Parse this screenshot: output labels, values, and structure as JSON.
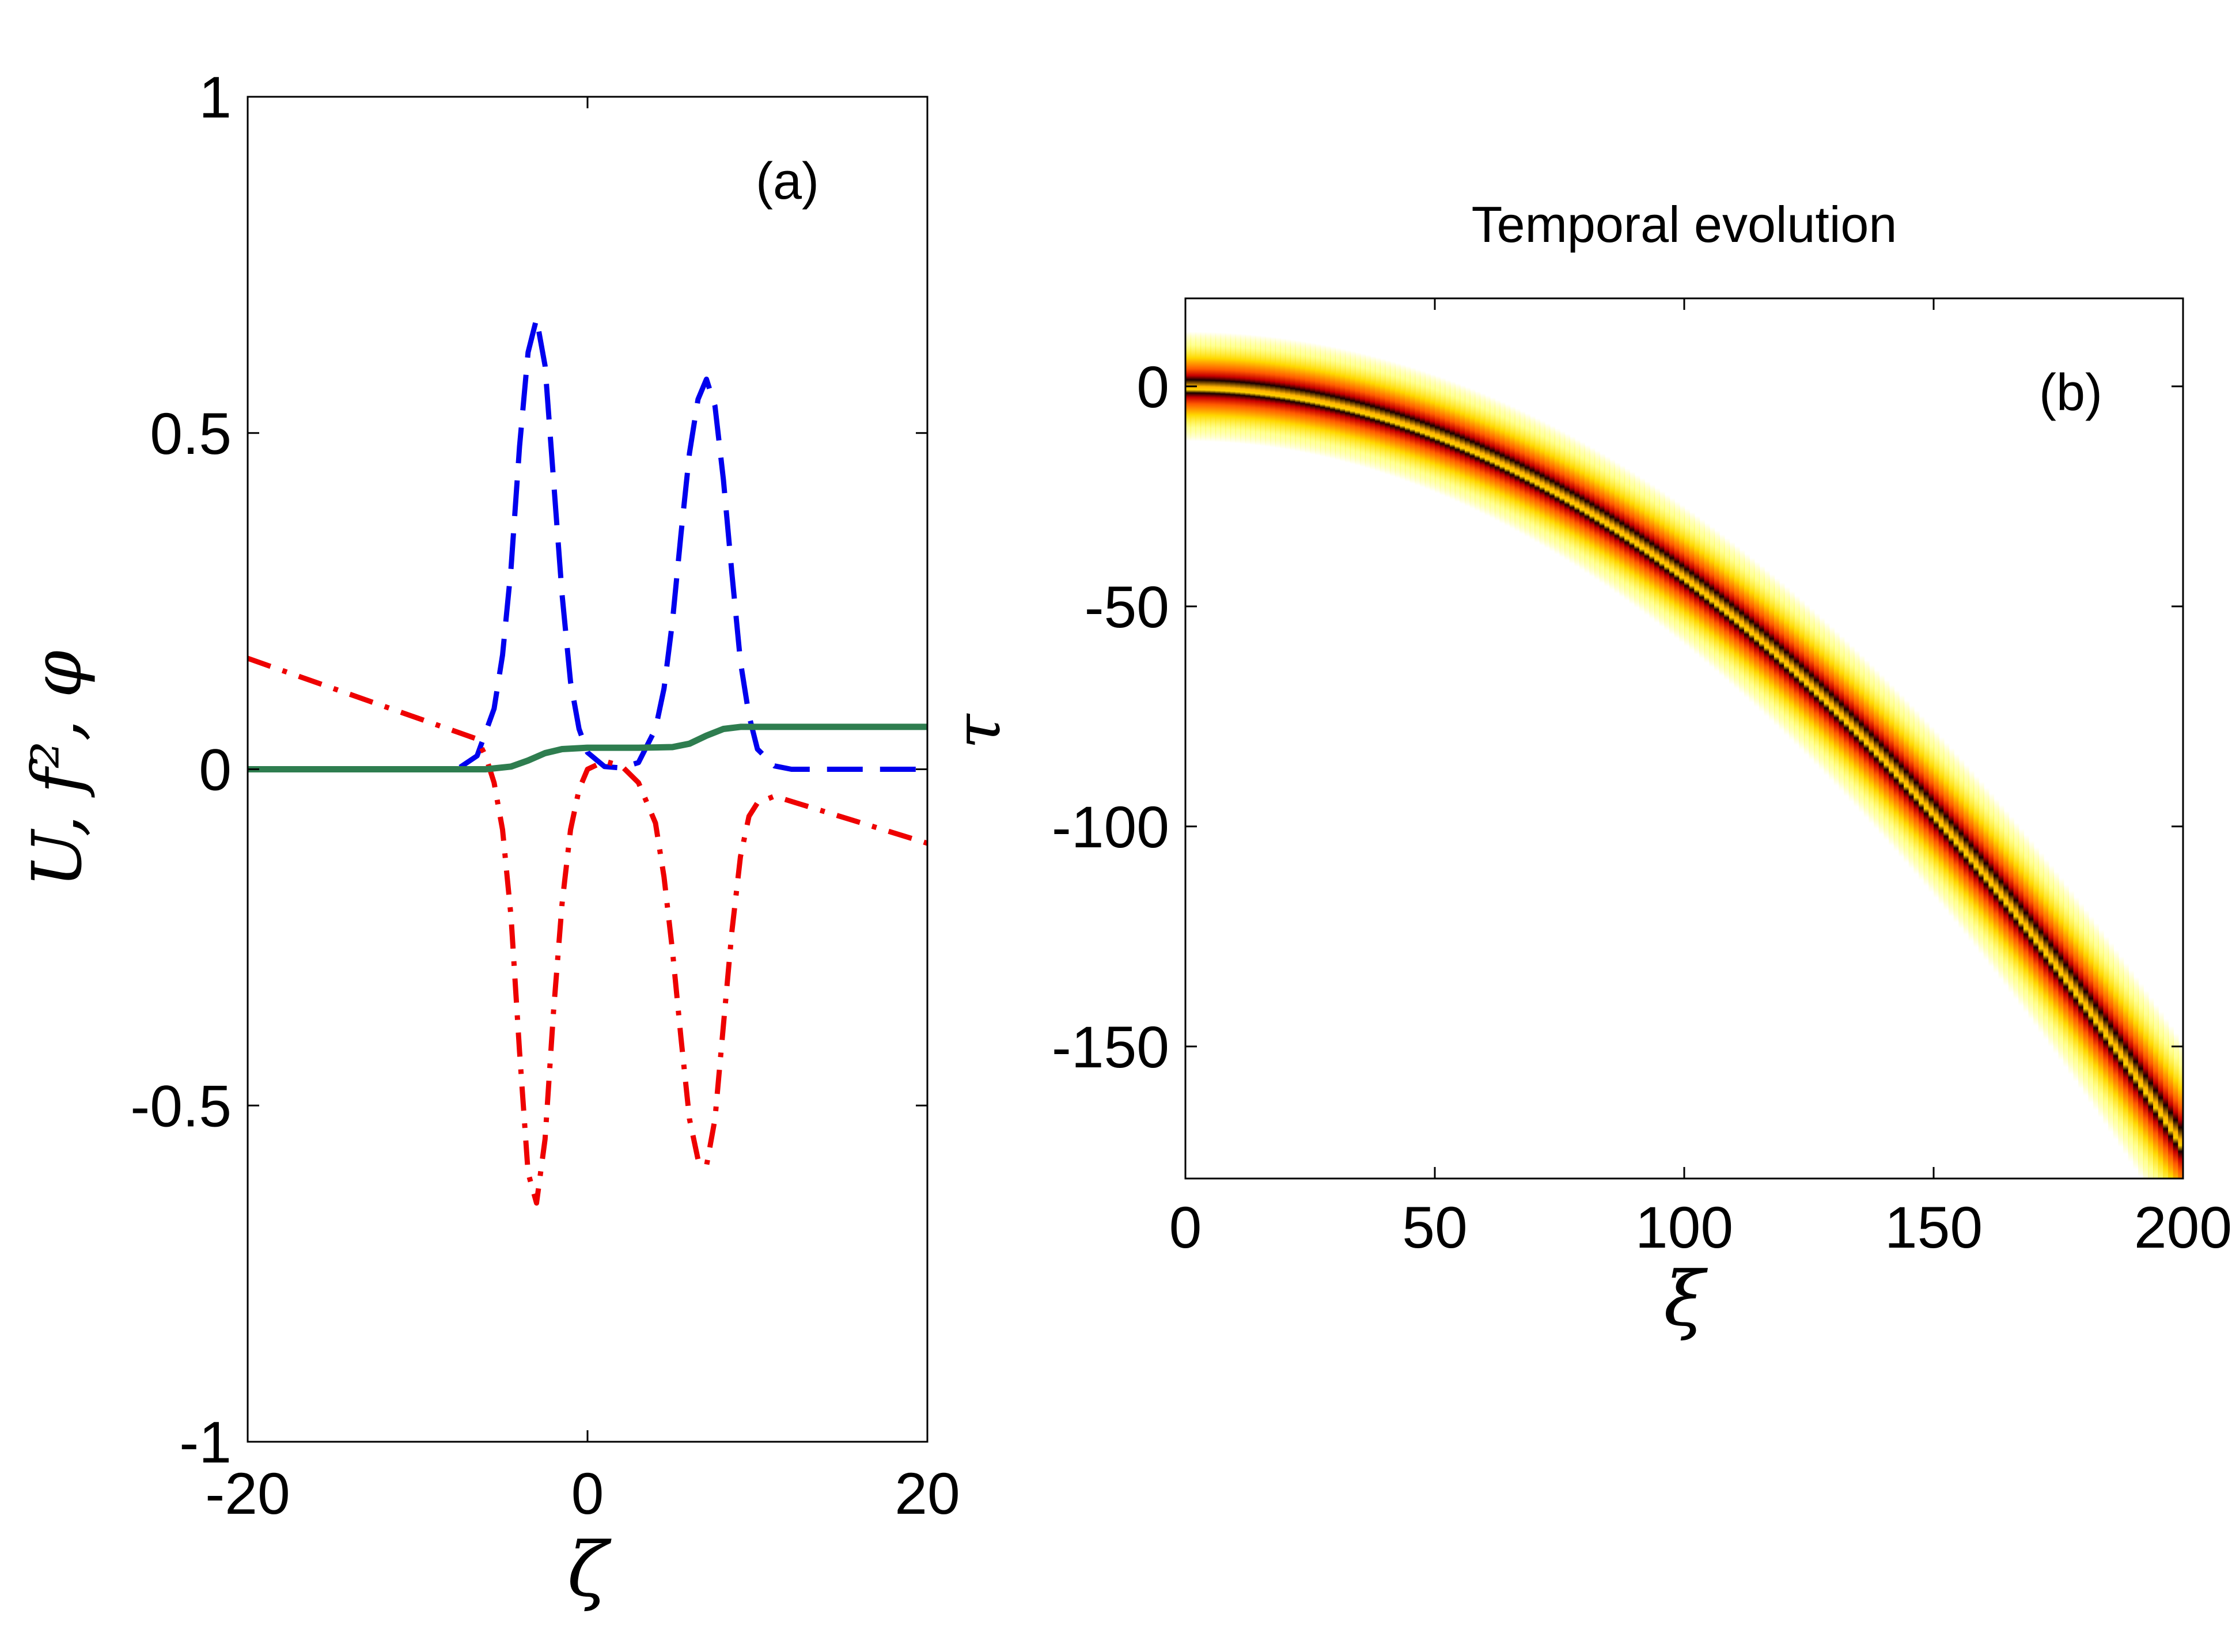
{
  "chart_data": [
    {
      "panel": "(a)",
      "type": "line",
      "xlabel": "ζ",
      "ylabel": "U, f², φ",
      "xlim": [
        -20,
        20
      ],
      "ylim": [
        -1,
        1
      ],
      "x_ticks": [
        "-20",
        "0",
        "20"
      ],
      "y_ticks": [
        "-1",
        "-0.5",
        "0",
        "0.5",
        "1"
      ],
      "grid": false,
      "colors": {
        "dashed": "#0000ee",
        "dashdot": "#ee0000",
        "solid": "#2e7d4f"
      },
      "series": [
        {
          "style": "dashed",
          "color": "#0000ee",
          "points": [
            [
              -20,
              0
            ],
            [
              -9,
              0
            ],
            [
              -7.5,
              0.003
            ],
            [
              -6.5,
              0.02
            ],
            [
              -5.5,
              0.09
            ],
            [
              -5,
              0.17
            ],
            [
              -4.5,
              0.3
            ],
            [
              -4,
              0.48
            ],
            [
              -3.5,
              0.62
            ],
            [
              -3,
              0.67
            ],
            [
              -2.5,
              0.6
            ],
            [
              -2,
              0.43
            ],
            [
              -1.5,
              0.26
            ],
            [
              -1,
              0.13
            ],
            [
              -0.5,
              0.06
            ],
            [
              0,
              0.025
            ],
            [
              1,
              0.004
            ],
            [
              2,
              0.002
            ],
            [
              3,
              0.01
            ],
            [
              4,
              0.06
            ],
            [
              4.5,
              0.12
            ],
            [
              5,
              0.22
            ],
            [
              5.5,
              0.35
            ],
            [
              6,
              0.47
            ],
            [
              6.5,
              0.55
            ],
            [
              7,
              0.58
            ],
            [
              7.5,
              0.54
            ],
            [
              8,
              0.43
            ],
            [
              8.5,
              0.29
            ],
            [
              9,
              0.16
            ],
            [
              9.5,
              0.08
            ],
            [
              10,
              0.03
            ],
            [
              11,
              0.005
            ],
            [
              12,
              0
            ],
            [
              20,
              0
            ]
          ]
        },
        {
          "style": "dashdot",
          "color": "#ee0000",
          "points": [
            [
              -20,
              0.165
            ],
            [
              -6.5,
              0.045
            ],
            [
              -6,
              0.02
            ],
            [
              -5.5,
              -0.02
            ],
            [
              -5,
              -0.09
            ],
            [
              -4.5,
              -0.22
            ],
            [
              -4,
              -0.42
            ],
            [
              -3.5,
              -0.6
            ],
            [
              -3,
              -0.645
            ],
            [
              -2.5,
              -0.55
            ],
            [
              -2,
              -0.36
            ],
            [
              -1.5,
              -0.2
            ],
            [
              -1,
              -0.09
            ],
            [
              -0.5,
              -0.03
            ],
            [
              0,
              0
            ],
            [
              1,
              0.012
            ],
            [
              2,
              0.005
            ],
            [
              3,
              -0.02
            ],
            [
              4,
              -0.08
            ],
            [
              4.5,
              -0.16
            ],
            [
              5,
              -0.27
            ],
            [
              5.5,
              -0.4
            ],
            [
              6,
              -0.52
            ],
            [
              6.5,
              -0.58
            ],
            [
              7,
              -0.59
            ],
            [
              7.5,
              -0.52
            ],
            [
              8,
              -0.38
            ],
            [
              8.5,
              -0.24
            ],
            [
              9,
              -0.13
            ],
            [
              9.5,
              -0.07
            ],
            [
              10,
              -0.05
            ],
            [
              11,
              -0.04
            ],
            [
              20,
              -0.11
            ]
          ]
        },
        {
          "style": "solid",
          "color": "#2e7d4f",
          "points": [
            [
              -20,
              0
            ],
            [
              -6,
              0
            ],
            [
              -4.5,
              0.004
            ],
            [
              -3.5,
              0.013
            ],
            [
              -2.5,
              0.024
            ],
            [
              -1.5,
              0.03
            ],
            [
              0,
              0.032
            ],
            [
              3,
              0.032
            ],
            [
              5,
              0.033
            ],
            [
              6,
              0.038
            ],
            [
              7,
              0.05
            ],
            [
              8,
              0.06
            ],
            [
              9,
              0.063
            ],
            [
              20,
              0.063
            ]
          ]
        }
      ],
      "annotations": [
        {
          "text": "(a)",
          "x": 6.5,
          "y": 0.88
        }
      ]
    },
    {
      "panel": "(b)",
      "type": "heatmap",
      "title": "Temporal evolution",
      "xlabel": "ξ",
      "ylabel": "τ",
      "xlim": [
        0,
        200
      ],
      "ylim": [
        -180,
        20
      ],
      "x_ticks": [
        "0",
        "50",
        "100",
        "150",
        "200"
      ],
      "y_ticks": [
        "0",
        "-50",
        "-100",
        "-150"
      ],
      "colormap": "hot (white → yellow → red → black)",
      "trajectories": [
        {
          "tau_at_xi0": 6,
          "tau_at_xi200": -166
        },
        {
          "tau_at_xi0": -6,
          "tau_at_xi200": -178
        }
      ],
      "trajectory_form": "tau = tau0 - 0.0043 * xi^2",
      "annotations": [
        {
          "text": "(b)",
          "x": 180,
          "y": 0
        }
      ]
    }
  ]
}
